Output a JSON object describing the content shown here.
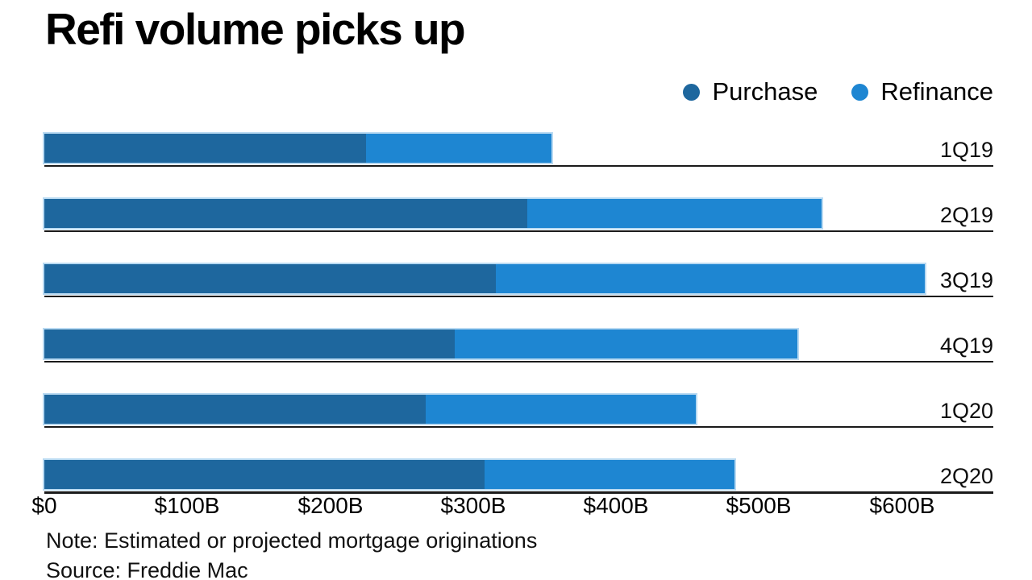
{
  "title": "Refi volume picks up",
  "legend": {
    "items": [
      {
        "label": "Purchase",
        "color": "#1e679e"
      },
      {
        "label": "Refinance",
        "color": "#1e86d2"
      }
    ]
  },
  "note": "Note: Estimated or projected mortgage originations",
  "source": "Source: Freddie Mac",
  "colors": {
    "purchase": "#1e679e",
    "refinance": "#1e86d2",
    "bar_outline": "#b9daf2",
    "row_line": "#1a1a1a",
    "text": "#000000"
  },
  "chart_data": {
    "type": "bar",
    "orientation": "horizontal",
    "stacked": true,
    "title": "Refi volume picks up",
    "unit": "billions of dollars",
    "categories": [
      "1Q19",
      "2Q19",
      "3Q19",
      "4Q19",
      "1Q20",
      "2Q20"
    ],
    "series": [
      {
        "name": "Purchase",
        "color": "#1e679e",
        "values": [
          225,
          338,
          316,
          287,
          267,
          308
        ]
      },
      {
        "name": "Refinance",
        "color": "#1e86d2",
        "values": [
          130,
          206,
          300,
          240,
          189,
          175
        ]
      }
    ],
    "totals": [
      355,
      544,
      616,
      527,
      456,
      483
    ],
    "x_ticks": [
      "$0",
      "$100B",
      "$200B",
      "$300B",
      "$400B",
      "$500B",
      "$600B"
    ],
    "x_tick_values": [
      0,
      100,
      200,
      300,
      400,
      500,
      600
    ],
    "xlim": [
      0,
      664
    ],
    "grid": false,
    "legend_position": "top-right"
  }
}
